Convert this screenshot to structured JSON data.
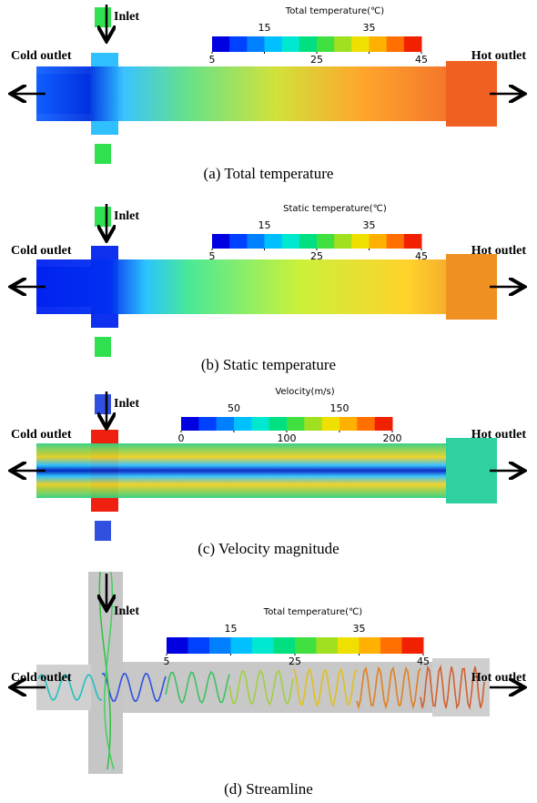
{
  "panels": [
    {
      "caption": "(a) Total temperature",
      "inlet_label": "Inlet",
      "cold_outlet_label": "Cold outlet",
      "hot_outlet_label": "Hot outlet",
      "colorbar": {
        "title": "Total temperature(℃)",
        "ticks": [
          5,
          15,
          25,
          35,
          45
        ]
      }
    },
    {
      "caption": "(b) Static temperature",
      "inlet_label": "Inlet",
      "cold_outlet_label": "Cold outlet",
      "hot_outlet_label": "Hot outlet",
      "colorbar": {
        "title": "Static temperature(℃)",
        "ticks": [
          5,
          15,
          25,
          35,
          45
        ]
      }
    },
    {
      "caption": "(c) Velocity magnitude",
      "inlet_label": "Inlet",
      "cold_outlet_label": "Cold outlet",
      "hot_outlet_label": "Hot outlet",
      "colorbar": {
        "title": "Velocity(m/s)",
        "ticks": [
          0,
          50,
          100,
          150,
          200
        ]
      }
    },
    {
      "caption": "(d) Streamline",
      "inlet_label": "Inlet",
      "cold_outlet_label": "Cold outlet",
      "hot_outlet_label": "Hot outlet",
      "colorbar": {
        "title": "Total temperature(℃)",
        "ticks": [
          5,
          15,
          25,
          35,
          45
        ]
      }
    }
  ]
}
